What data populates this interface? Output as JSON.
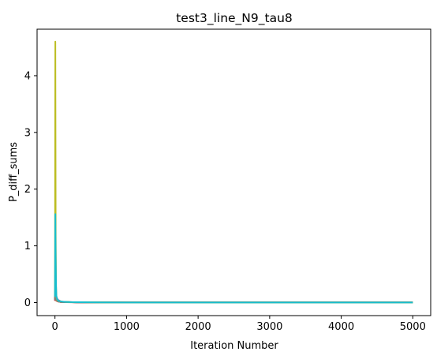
{
  "chart_data": {
    "type": "line",
    "title": "test3_line_N9_tau8",
    "xlabel": "Iteration Number",
    "ylabel": "P_diff_sums",
    "xlim": [
      -250,
      5250
    ],
    "ylim": [
      -0.23,
      4.82
    ],
    "xticks": [
      0,
      1000,
      2000,
      3000,
      4000,
      5000
    ],
    "yticks": [
      0,
      1,
      2,
      3,
      4
    ],
    "grid": false,
    "legend": "none",
    "series": [
      {
        "color": "#1f77b4",
        "x": [
          0,
          5,
          10,
          20,
          40,
          80,
          150,
          300,
          1000,
          5000
        ],
        "y": [
          0.06,
          0.3,
          0.15,
          0.07,
          0.03,
          0.015,
          0.01,
          0.005,
          0.002,
          0.001
        ]
      },
      {
        "color": "#ff7f0e",
        "x": [
          0,
          5,
          10,
          20,
          40,
          80,
          150,
          300,
          1000,
          5000
        ],
        "y": [
          0.04,
          0.1,
          0.06,
          0.03,
          0.02,
          0.01,
          0.008,
          0.004,
          0.002,
          0.001
        ]
      },
      {
        "color": "#2ca02c",
        "x": [
          0,
          5,
          10,
          20,
          40,
          80,
          150,
          300,
          1000,
          5000
        ],
        "y": [
          0.05,
          0.2,
          0.12,
          0.06,
          0.03,
          0.015,
          0.01,
          0.005,
          0.002,
          0.001
        ]
      },
      {
        "color": "#d62728",
        "x": [
          0,
          5,
          10,
          20,
          40,
          80,
          150,
          300,
          1000,
          5000
        ],
        "y": [
          0.03,
          0.12,
          0.07,
          0.04,
          0.02,
          0.01,
          0.007,
          0.004,
          0.002,
          0.001
        ]
      },
      {
        "color": "#9467bd",
        "x": [
          0,
          5,
          10,
          20,
          40,
          80,
          150,
          300,
          1000,
          5000
        ],
        "y": [
          0.08,
          0.35,
          0.2,
          0.1,
          0.05,
          0.02,
          0.01,
          0.005,
          0.002,
          0.001
        ]
      },
      {
        "color": "#8c564b",
        "x": [
          0,
          5,
          10,
          20,
          40,
          80,
          150,
          300,
          1000,
          5000
        ],
        "y": [
          0.05,
          0.15,
          0.1,
          0.05,
          0.025,
          0.012,
          0.008,
          0.004,
          0.002,
          0.001
        ]
      },
      {
        "color": "#7f7f7f",
        "x": [
          0,
          5,
          10,
          20,
          40,
          80,
          150,
          300,
          1000,
          5000
        ],
        "y": [
          0.04,
          0.12,
          0.08,
          0.04,
          0.02,
          0.01,
          0.007,
          0.004,
          0.002,
          0.001
        ]
      },
      {
        "color": "#bcbd22",
        "x": [
          0,
          5,
          10,
          15,
          20,
          30,
          50,
          100,
          200,
          500,
          1000,
          5000
        ],
        "y": [
          0.1,
          4.6,
          1.2,
          0.3,
          0.1,
          0.05,
          0.03,
          0.015,
          0.008,
          0.004,
          0.002,
          0.001
        ]
      },
      {
        "color": "#17becf",
        "x": [
          0,
          5,
          10,
          15,
          20,
          30,
          50,
          100,
          200,
          500,
          1000,
          5000
        ],
        "y": [
          0.1,
          1.56,
          0.8,
          0.3,
          0.12,
          0.06,
          0.03,
          0.015,
          0.008,
          0.004,
          0.002,
          0.001
        ]
      }
    ]
  }
}
